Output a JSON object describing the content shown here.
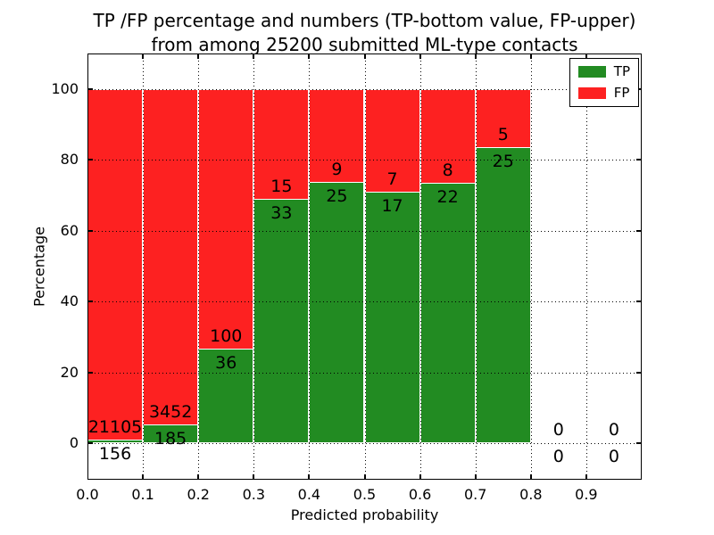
{
  "chart_data": {
    "type": "bar",
    "stacked": true,
    "title_line1": "TP /FP percentage and numbers (TP-bottom value, FP-upper)",
    "title_line2": "from among 25200 submitted ML-type contacts",
    "total_contacts": 25200,
    "xlabel": "Predicted probability",
    "ylabel": "Percentage",
    "xlim": [
      0.0,
      1.0
    ],
    "ylim": [
      -10.3,
      110.3
    ],
    "xtick_labels": [
      "0.0",
      "0.1",
      "0.2",
      "0.3",
      "0.4",
      "0.5",
      "0.6",
      "0.7",
      "0.8",
      "0.9"
    ],
    "ytick_values": [
      0,
      20,
      40,
      60,
      80,
      100
    ],
    "grid": "dotted",
    "categories": [
      "0.0-0.1",
      "0.1-0.2",
      "0.2-0.3",
      "0.3-0.4",
      "0.4-0.5",
      "0.5-0.6",
      "0.6-0.7",
      "0.7-0.8",
      "0.8-0.9",
      "0.9-1.0"
    ],
    "series": [
      {
        "name": "TP",
        "counts": [
          156,
          185,
          36,
          33,
          25,
          17,
          22,
          25,
          0,
          0
        ],
        "pct": [
          0.73,
          5.09,
          26.47,
          68.75,
          73.53,
          70.83,
          73.33,
          83.33,
          0,
          0
        ]
      },
      {
        "name": "FP",
        "counts": [
          21105,
          3452,
          100,
          15,
          9,
          7,
          8,
          5,
          0,
          0
        ],
        "pct": [
          99.27,
          94.91,
          73.53,
          31.25,
          26.47,
          29.17,
          26.67,
          16.67,
          0,
          0
        ]
      }
    ],
    "legend": {
      "position": "upper-right",
      "entries": [
        {
          "label": "TP",
          "color": "#228b22"
        },
        {
          "label": "FP",
          "color": "#fd2121"
        }
      ]
    },
    "colors": {
      "tp": "#228b22",
      "fp": "#fd2121",
      "bar_edge": "#ffffff",
      "frame": "#000000",
      "background": "#ffffff"
    }
  }
}
